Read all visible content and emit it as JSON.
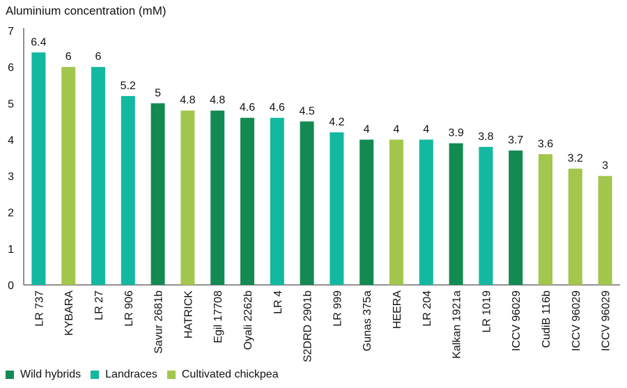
{
  "chart_data": {
    "type": "bar",
    "ylabel": "Aluminium concentration (mM)",
    "ylim": [
      0,
      7
    ],
    "yticks": [
      0,
      1,
      2,
      3,
      4,
      5,
      6,
      7
    ],
    "grid": false,
    "legend_position": "bottom-left",
    "categories": [
      "LR 737",
      "KYBARA",
      "LR 27",
      "LR 906",
      "Savur 2681b",
      "HATRICK",
      "Egil 17708",
      "Oyali 2262b",
      "LR 4",
      "S2DRD 2901b",
      "LR 999",
      "Gunas 375a",
      "HEERA",
      "LR 204",
      "Kalkan 1921a",
      "LR 1019",
      "ICCV 96029",
      "CudiB 116b",
      "ICCV 96029",
      "ICCV 96029"
    ],
    "values": [
      6.4,
      6,
      6,
      5.2,
      5,
      4.8,
      4.8,
      4.6,
      4.6,
      4.5,
      4.2,
      4,
      4,
      4,
      3.9,
      3.8,
      3.7,
      3.6,
      3.2,
      3
    ],
    "groups": [
      "Landraces",
      "Cultivated chickpea",
      "Landraces",
      "Landraces",
      "Wild hybrids",
      "Cultivated chickpea",
      "Wild hybrids",
      "Wild hybrids",
      "Landraces",
      "Wild hybrids",
      "Landraces",
      "Wild hybrids",
      "Cultivated chickpea",
      "Landraces",
      "Wild hybrids",
      "Landraces",
      "Wild hybrids",
      "Cultivated chickpea",
      "Cultivated chickpea",
      "Cultivated chickpea"
    ],
    "legend": [
      {
        "name": "Wild hybrids",
        "color": "#138a52"
      },
      {
        "name": "Landraces",
        "color": "#12b8a0"
      },
      {
        "name": "Cultivated chickpea",
        "color": "#a3c64c"
      }
    ]
  }
}
